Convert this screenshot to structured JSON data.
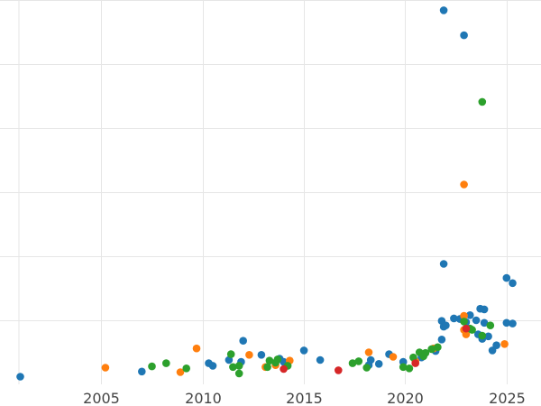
{
  "chart_data": {
    "type": "scatter",
    "title": "",
    "xlabel": "",
    "ylabel": "",
    "xlim": [
      2000,
      2026.7
    ],
    "ylim": [
      0,
      6
    ],
    "grid": true,
    "legend": "none",
    "x_ticks": [
      2005,
      2010,
      2015,
      2020,
      2025
    ],
    "x_tick_labels": [
      "2005",
      "2010",
      "2015",
      "2020",
      "2025"
    ],
    "y_ticks": [
      1,
      2,
      3,
      4,
      5,
      6
    ],
    "colors": {
      "blue": "#1f77b4",
      "orange": "#ff7f0e",
      "green": "#2ca02c",
      "red": "#d62728"
    },
    "series": [
      {
        "color": "blue",
        "points": [
          [
            2001.0,
            0.12
          ],
          [
            2007.0,
            0.2
          ],
          [
            2010.3,
            0.33
          ],
          [
            2010.5,
            0.29
          ],
          [
            2011.3,
            0.38
          ],
          [
            2011.9,
            0.35
          ],
          [
            2012.0,
            0.68
          ],
          [
            2012.9,
            0.46
          ],
          [
            2013.8,
            0.4
          ],
          [
            2014.0,
            0.35
          ],
          [
            2015.0,
            0.53
          ],
          [
            2015.8,
            0.38
          ],
          [
            2018.2,
            0.3
          ],
          [
            2018.3,
            0.38
          ],
          [
            2018.7,
            0.32
          ],
          [
            2019.2,
            0.47
          ],
          [
            2019.9,
            0.35
          ],
          [
            2020.8,
            0.42
          ],
          [
            2021.5,
            0.52
          ],
          [
            2021.8,
            0.7
          ],
          [
            2021.8,
            0.99
          ],
          [
            2021.9,
            0.9
          ],
          [
            2022.0,
            0.92
          ],
          [
            2021.9,
            5.84
          ],
          [
            2022.9,
            5.45
          ],
          [
            2021.9,
            1.88
          ],
          [
            2022.4,
            1.03
          ],
          [
            2022.7,
            1.02
          ],
          [
            2023.0,
            0.97
          ],
          [
            2023.2,
            1.08
          ],
          [
            2023.5,
            1.0
          ],
          [
            2023.7,
            1.18
          ],
          [
            2023.9,
            1.17
          ],
          [
            2023.6,
            0.78
          ],
          [
            2023.9,
            0.96
          ],
          [
            2023.8,
            0.71
          ],
          [
            2024.1,
            0.75
          ],
          [
            2024.3,
            0.53
          ],
          [
            2024.5,
            0.61
          ],
          [
            2025.0,
            0.96
          ],
          [
            2025.0,
            1.66
          ],
          [
            2025.3,
            1.58
          ],
          [
            2025.3,
            0.95
          ]
        ]
      },
      {
        "color": "orange",
        "points": [
          [
            2005.2,
            0.26
          ],
          [
            2008.9,
            0.19
          ],
          [
            2009.7,
            0.56
          ],
          [
            2012.3,
            0.46
          ],
          [
            2013.1,
            0.27
          ],
          [
            2013.6,
            0.3
          ],
          [
            2014.3,
            0.37
          ],
          [
            2018.2,
            0.5
          ],
          [
            2019.4,
            0.43
          ],
          [
            2020.5,
            0.36
          ],
          [
            2021.4,
            0.56
          ],
          [
            2022.9,
            1.07
          ],
          [
            2022.9,
            0.85
          ],
          [
            2023.0,
            0.78
          ],
          [
            2022.9,
            3.12
          ],
          [
            2024.9,
            0.63
          ]
        ]
      },
      {
        "color": "green",
        "points": [
          [
            2007.5,
            0.28
          ],
          [
            2008.2,
            0.33
          ],
          [
            2009.2,
            0.25
          ],
          [
            2011.4,
            0.47
          ],
          [
            2011.5,
            0.27
          ],
          [
            2011.8,
            0.29
          ],
          [
            2011.8,
            0.17
          ],
          [
            2013.2,
            0.27
          ],
          [
            2013.3,
            0.37
          ],
          [
            2013.6,
            0.34
          ],
          [
            2013.7,
            0.39
          ],
          [
            2014.2,
            0.29
          ],
          [
            2017.4,
            0.33
          ],
          [
            2017.7,
            0.36
          ],
          [
            2018.1,
            0.26
          ],
          [
            2019.9,
            0.27
          ],
          [
            2020.2,
            0.25
          ],
          [
            2020.4,
            0.42
          ],
          [
            2020.7,
            0.5
          ],
          [
            2020.9,
            0.44
          ],
          [
            2021.0,
            0.49
          ],
          [
            2021.3,
            0.55
          ],
          [
            2021.6,
            0.58
          ],
          [
            2022.9,
            0.98
          ],
          [
            2023.2,
            0.87
          ],
          [
            2023.3,
            0.85
          ],
          [
            2023.8,
            4.41
          ],
          [
            2023.8,
            0.76
          ],
          [
            2024.2,
            0.92
          ]
        ]
      },
      {
        "color": "red",
        "points": [
          [
            2014.0,
            0.24
          ],
          [
            2016.7,
            0.22
          ],
          [
            2020.5,
            0.33
          ],
          [
            2023.0,
            0.87
          ]
        ]
      }
    ]
  }
}
